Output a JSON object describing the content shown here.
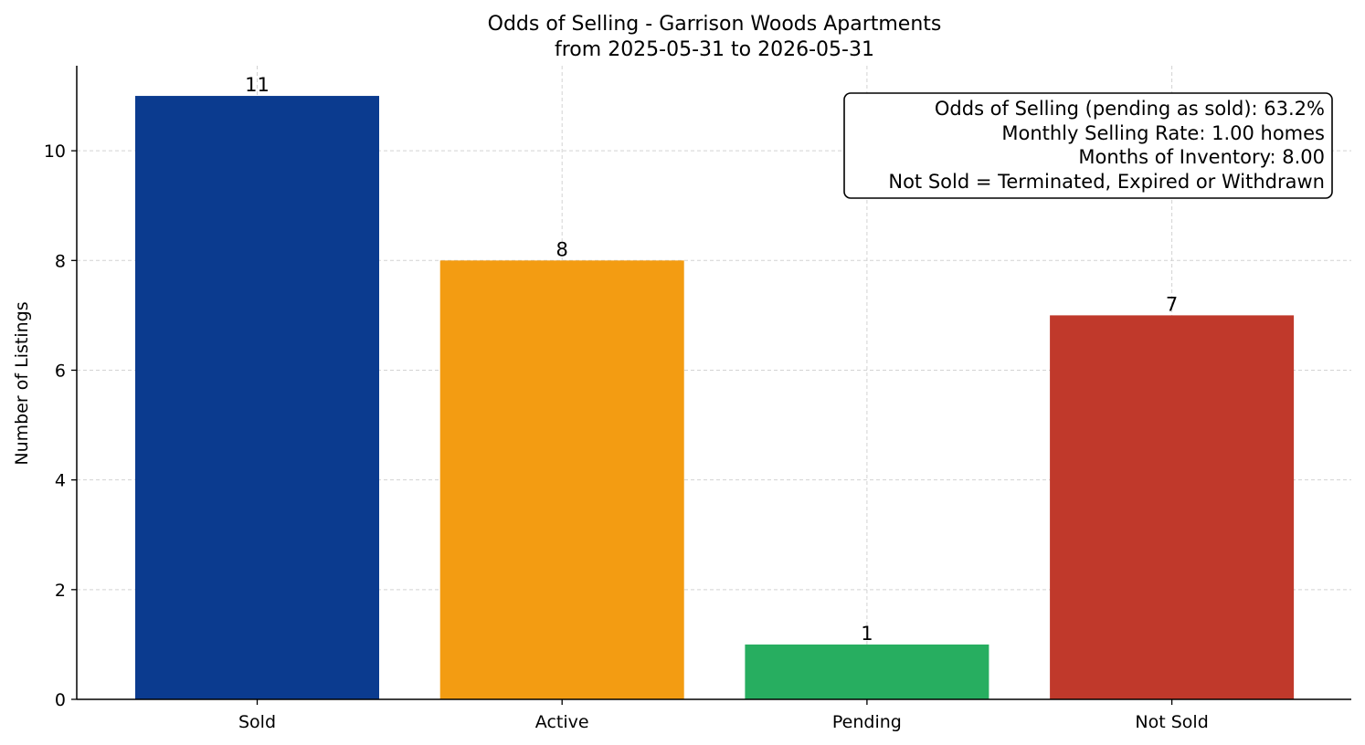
{
  "chart_data": {
    "type": "bar",
    "title": "Odds of Selling - Garrison Woods Apartments",
    "subtitle": "from 2025-05-31 to 2026-05-31",
    "xlabel": "",
    "ylabel": "Number of Listings",
    "categories": [
      "Sold",
      "Active",
      "Pending",
      "Not Sold"
    ],
    "values": [
      11,
      8,
      1,
      7
    ],
    "data_labels": [
      "11",
      "8",
      "1",
      "7"
    ],
    "colors": [
      "#0b3b8f",
      "#f39c12",
      "#27ae60",
      "#c0392b"
    ],
    "ylim": [
      0,
      11.55
    ],
    "yticks": [
      0,
      2,
      4,
      6,
      8,
      10
    ],
    "grid": true,
    "annotations": {
      "placement": "top-right",
      "lines": [
        "Odds of Selling (pending as sold): 63.2%",
        "Monthly Selling Rate: 1.00 homes",
        "Months of Inventory: 8.00",
        "Not Sold = Terminated, Expired or Withdrawn"
      ]
    }
  }
}
